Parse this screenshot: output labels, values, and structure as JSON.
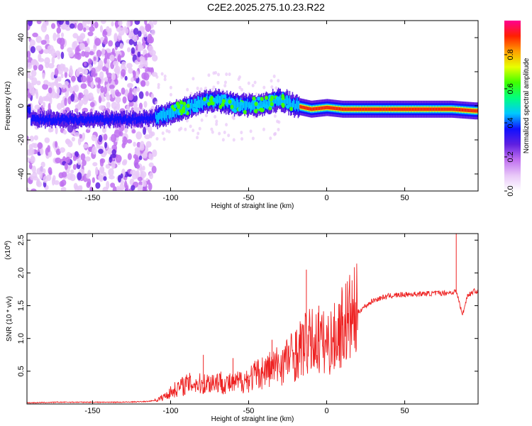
{
  "title": "C2E2.2025.275.10.23.R22",
  "chart_data": [
    {
      "type": "heatmap",
      "title": "C2E2.2025.275.10.23.R22",
      "xlabel": "Height of straight line (km)",
      "ylabel": "Frequency (Hz)",
      "xlim": [
        -192,
        97
      ],
      "ylim": [
        -50,
        50
      ],
      "xticks": [
        -150,
        -100,
        -50,
        0,
        50
      ],
      "yticks": [
        -40,
        -20,
        0,
        20,
        40
      ],
      "xtick_labels": [
        "-150",
        "-100",
        "-50",
        "0",
        "50"
      ],
      "ytick_labels": [
        "-40",
        "-20",
        "0",
        "20",
        "40"
      ],
      "colorbar": {
        "label": "Normalized spectral amplitude",
        "range": [
          0,
          1
        ],
        "ticks": [
          0.0,
          0.2,
          0.4,
          0.6,
          0.8
        ],
        "tick_labels": [
          "0.0",
          "0.2",
          "0.4",
          "0.6",
          "0.8"
        ],
        "colors": [
          "#ffffff",
          "#e8c8f8",
          "#c070f0",
          "#6020e0",
          "#1010ff",
          "#00c8ff",
          "#00ff80",
          "#40ff00",
          "#e8ff00",
          "#ffa000",
          "#ff2000",
          "#ff0090"
        ]
      },
      "band_ridge": [
        {
          "x": -190,
          "y": -8
        },
        {
          "x": -160,
          "y": -8
        },
        {
          "x": -130,
          "y": -8
        },
        {
          "x": -110,
          "y": -7
        },
        {
          "x": -100,
          "y": -4
        },
        {
          "x": -90,
          "y": -1
        },
        {
          "x": -80,
          "y": 2
        },
        {
          "x": -70,
          "y": 3
        },
        {
          "x": -60,
          "y": 1
        },
        {
          "x": -50,
          "y": 0
        },
        {
          "x": -40,
          "y": 1
        },
        {
          "x": -30,
          "y": 4
        },
        {
          "x": -20,
          "y": 0
        },
        {
          "x": -10,
          "y": -2
        },
        {
          "x": 0,
          "y": -1
        },
        {
          "x": 10,
          "y": -2
        },
        {
          "x": 30,
          "y": -2
        },
        {
          "x": 60,
          "y": -2
        },
        {
          "x": 80,
          "y": -2
        },
        {
          "x": 95,
          "y": -3
        }
      ]
    },
    {
      "type": "line",
      "xlabel": "Height of straight line (km)",
      "ylabel": "SNR (10 * v/v)",
      "exponent_label": "(x10",
      "exponent_power": "4",
      "exponent_close": ")",
      "xlim": [
        -192,
        97
      ],
      "ylim": [
        0,
        2.6
      ],
      "xticks": [
        -150,
        -100,
        -50,
        0,
        50
      ],
      "yticks": [
        0.5,
        1.0,
        1.5,
        2.0,
        2.5
      ],
      "xtick_labels": [
        "-150",
        "-100",
        "-50",
        "0",
        "50"
      ],
      "ytick_labels": [
        "0.5",
        "1.0",
        "1.5",
        "2.0",
        "2.5"
      ],
      "color": "#ee2222",
      "series": [
        {
          "name": "SNR",
          "x": [
            -192,
            -170,
            -150,
            -130,
            -115,
            -110,
            -105,
            -100,
            -95,
            -90,
            -85,
            -80,
            -75,
            -70,
            -65,
            -60,
            -55,
            -50,
            -45,
            -40,
            -35,
            -30,
            -25,
            -20,
            -15,
            -10,
            -5,
            0,
            5,
            10,
            15,
            20,
            25,
            30,
            35,
            40,
            50,
            60,
            70,
            80,
            83,
            85,
            87,
            90,
            95,
            97
          ],
          "y": [
            0.01,
            0.02,
            0.02,
            0.02,
            0.03,
            0.05,
            0.1,
            0.18,
            0.25,
            0.3,
            0.32,
            0.3,
            0.33,
            0.35,
            0.32,
            0.3,
            0.35,
            0.38,
            0.45,
            0.5,
            0.55,
            0.6,
            0.7,
            0.75,
            0.9,
            0.95,
            0.95,
            0.92,
            1.0,
            1.2,
            1.3,
            1.4,
            1.5,
            1.58,
            1.62,
            1.65,
            1.67,
            1.68,
            1.69,
            1.7,
            1.72,
            1.55,
            1.35,
            1.65,
            1.73,
            1.7
          ]
        }
      ],
      "spikes": [
        {
          "x": -79,
          "y": 0.75
        },
        {
          "x": -60,
          "y": 0.7
        },
        {
          "x": -35,
          "y": 0.98
        },
        {
          "x": -20,
          "y": 1.1
        },
        {
          "x": -13,
          "y": 2.05
        },
        {
          "x": -5,
          "y": 1.5
        },
        {
          "x": 10,
          "y": 1.4
        },
        {
          "x": 83,
          "y": 2.6
        }
      ]
    }
  ]
}
